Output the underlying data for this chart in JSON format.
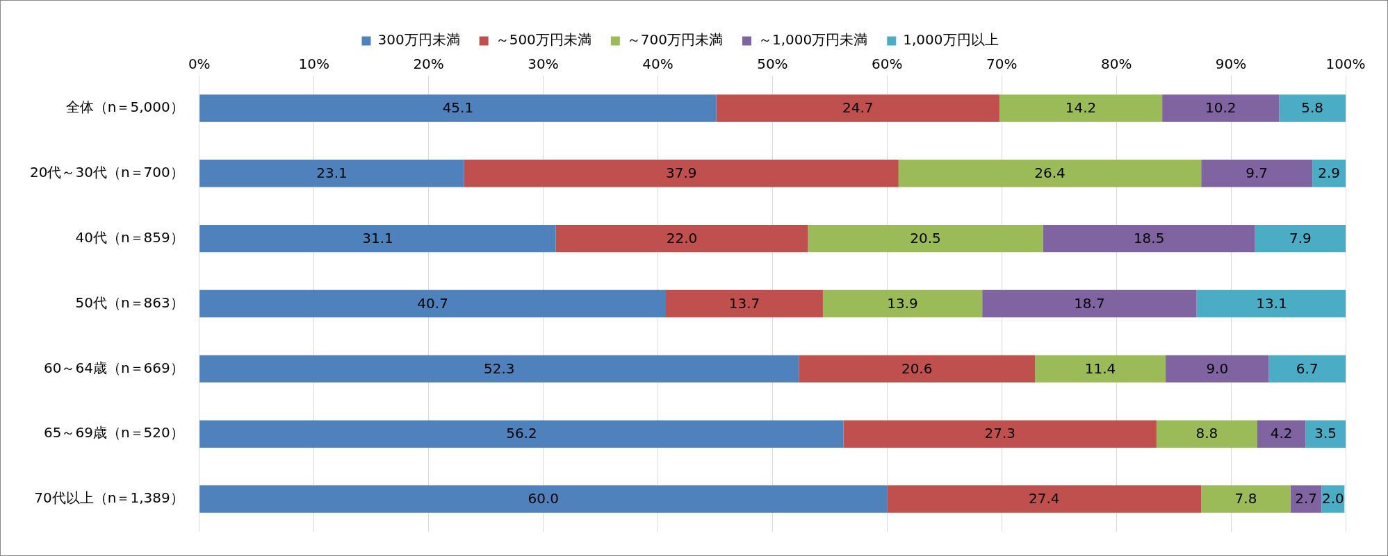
{
  "chart_data": {
    "type": "bar",
    "orientation": "horizontal",
    "stacked": true,
    "categories": [
      "全体（n＝5,000）",
      "20代～30代（n＝700）",
      "40代（n＝859）",
      "50代（n＝863）",
      "60～64歳（n＝669）",
      "65～69歳（n＝520）",
      "70代以上（n＝1,389）"
    ],
    "series": [
      {
        "name": "300万円未満",
        "color": "#4f81bd",
        "values": [
          45.1,
          23.1,
          31.1,
          40.7,
          52.3,
          56.2,
          60.0
        ],
        "value_labels": [
          "45.1",
          "23.1",
          "31.1",
          "40.7",
          "52.3",
          "56.2",
          "60.0"
        ]
      },
      {
        "name": "～500万円未満",
        "color": "#c0504d",
        "values": [
          24.7,
          37.9,
          22.0,
          13.7,
          20.6,
          27.3,
          27.4
        ],
        "value_labels": [
          "24.7",
          "37.9",
          "22.0",
          "13.7",
          "20.6",
          "27.3",
          "27.4"
        ]
      },
      {
        "name": "～700万円未満",
        "color": "#9bbb59",
        "values": [
          14.2,
          26.4,
          20.5,
          13.9,
          11.4,
          8.8,
          7.8
        ],
        "value_labels": [
          "14.2",
          "26.4",
          "20.5",
          "13.9",
          "11.4",
          "8.8",
          "7.8"
        ]
      },
      {
        "name": "～1,000万円未満",
        "color": "#8064a2",
        "values": [
          10.2,
          9.7,
          18.5,
          18.7,
          9.0,
          4.2,
          2.7
        ],
        "value_labels": [
          "10.2",
          "9.7",
          "18.5",
          "18.7",
          "9.0",
          "4.2",
          "2.7"
        ]
      },
      {
        "name": "1,000万円以上",
        "color": "#4bacc6",
        "values": [
          5.8,
          2.9,
          7.9,
          13.1,
          6.7,
          3.5,
          2.0
        ],
        "value_labels": [
          "5.8",
          "2.9",
          "7.9",
          "13.1",
          "6.7",
          "3.5",
          "2.0"
        ]
      }
    ],
    "xlim": [
      0,
      100
    ],
    "xticks": [
      {
        "value": 0,
        "label": "0%"
      },
      {
        "value": 10,
        "label": "10%"
      },
      {
        "value": 20,
        "label": "20%"
      },
      {
        "value": 30,
        "label": "30%"
      },
      {
        "value": 40,
        "label": "40%"
      },
      {
        "value": 50,
        "label": "50%"
      },
      {
        "value": 60,
        "label": "60%"
      },
      {
        "value": 70,
        "label": "70%"
      },
      {
        "value": 80,
        "label": "80%"
      },
      {
        "value": 90,
        "label": "90%"
      },
      {
        "value": 100,
        "label": "100%"
      }
    ],
    "grid": "x",
    "legend": "top"
  }
}
